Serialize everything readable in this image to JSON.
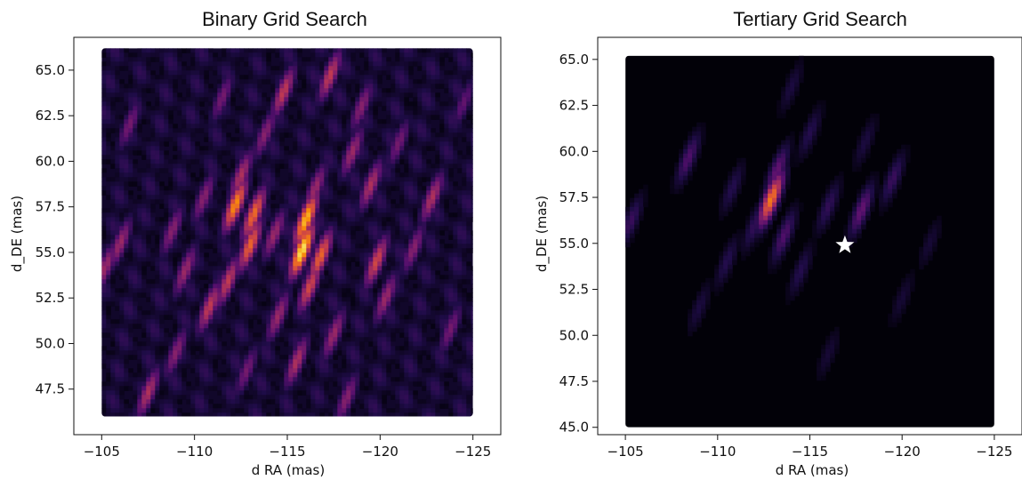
{
  "chart_data": [
    {
      "type": "heatmap",
      "title": "Binary Grid Search",
      "xlabel": "d  RA (mas)",
      "ylabel": "d_DE (mas)",
      "xlim": [
        -103.5,
        -126.5
      ],
      "ylim": [
        45.0,
        66.8
      ],
      "data_extent": {
        "x": [
          -105,
          -125
        ],
        "y": [
          46,
          66.2
        ]
      },
      "xticks": [
        -105,
        -110,
        -115,
        -120,
        -125
      ],
      "xticklabels": [
        "−105",
        "−110",
        "−115",
        "−120",
        "−125"
      ],
      "yticks": [
        47.5,
        50.0,
        52.5,
        55.0,
        57.5,
        60.0,
        62.5,
        65.0
      ],
      "yticklabels": [
        "47.5",
        "50.0",
        "52.5",
        "55.0",
        "57.5",
        "60.0",
        "62.5",
        "65.0"
      ],
      "colormap": "inferno",
      "background_level": 0.18,
      "peaks": [
        {
          "x": -115.8,
          "y": 55.1,
          "v": 1.0
        },
        {
          "x": -116.0,
          "y": 56.8,
          "v": 0.9
        },
        {
          "x": -112.2,
          "y": 57.6,
          "v": 0.8
        },
        {
          "x": -113.2,
          "y": 57.1,
          "v": 0.72
        },
        {
          "x": -113.0,
          "y": 55.4,
          "v": 0.7
        },
        {
          "x": -116.8,
          "y": 54.8,
          "v": 0.7
        },
        {
          "x": -116.2,
          "y": 53.1,
          "v": 0.6
        },
        {
          "x": -119.8,
          "y": 54.5,
          "v": 0.6
        },
        {
          "x": -111.8,
          "y": 53.4,
          "v": 0.55
        },
        {
          "x": -110.8,
          "y": 52.0,
          "v": 0.55
        },
        {
          "x": -114.8,
          "y": 63.8,
          "v": 0.55
        },
        {
          "x": -119.5,
          "y": 58.7,
          "v": 0.5
        },
        {
          "x": -122.8,
          "y": 58.0,
          "v": 0.5
        },
        {
          "x": -117.3,
          "y": 64.7,
          "v": 0.55
        },
        {
          "x": -112.5,
          "y": 59.2,
          "v": 0.5
        },
        {
          "x": -115.5,
          "y": 49.0,
          "v": 0.5
        },
        {
          "x": -109.5,
          "y": 54.0,
          "v": 0.45
        },
        {
          "x": -107.5,
          "y": 47.3,
          "v": 0.5
        },
        {
          "x": -120.3,
          "y": 52.5,
          "v": 0.45
        },
        {
          "x": -114.5,
          "y": 51.5,
          "v": 0.45
        },
        {
          "x": -118.5,
          "y": 60.5,
          "v": 0.45
        },
        {
          "x": -121.8,
          "y": 55.2,
          "v": 0.4
        },
        {
          "x": -106.0,
          "y": 55.5,
          "v": 0.45
        },
        {
          "x": -110.5,
          "y": 58.0,
          "v": 0.4
        },
        {
          "x": -113.8,
          "y": 61.5,
          "v": 0.4
        },
        {
          "x": -108.8,
          "y": 56.2,
          "v": 0.4
        },
        {
          "x": -117.5,
          "y": 50.5,
          "v": 0.45
        },
        {
          "x": -119.0,
          "y": 63.0,
          "v": 0.4
        },
        {
          "x": -123.8,
          "y": 50.8,
          "v": 0.35
        },
        {
          "x": -106.5,
          "y": 62.0,
          "v": 0.35
        },
        {
          "x": -109.0,
          "y": 49.5,
          "v": 0.4
        },
        {
          "x": -111.5,
          "y": 63.5,
          "v": 0.35
        },
        {
          "x": -121.0,
          "y": 61.0,
          "v": 0.35
        },
        {
          "x": -112.8,
          "y": 48.5,
          "v": 0.35
        },
        {
          "x": -118.2,
          "y": 47.0,
          "v": 0.4
        },
        {
          "x": -105.2,
          "y": 54.2,
          "v": 0.45
        },
        {
          "x": -124.5,
          "y": 63.2,
          "v": 0.3
        },
        {
          "x": -116.5,
          "y": 58.5,
          "v": 0.45
        },
        {
          "x": -114.3,
          "y": 56.0,
          "v": 0.45
        }
      ]
    },
    {
      "type": "heatmap",
      "title": "Tertiary Grid Search",
      "xlabel": "d  RA (mas)",
      "ylabel": "d_DE (mas)",
      "xlim": [
        -103.5,
        -126.5
      ],
      "ylim": [
        44.6,
        66.2
      ],
      "data_extent": {
        "x": [
          -105,
          -125
        ],
        "y": [
          45.0,
          65.2
        ]
      },
      "xticks": [
        -105,
        -110,
        -115,
        -120,
        -125
      ],
      "xticklabels": [
        "−105",
        "−110",
        "−115",
        "−120",
        "−125"
      ],
      "yticks": [
        45.0,
        47.5,
        50.0,
        52.5,
        55.0,
        57.5,
        60.0,
        62.5,
        65.0
      ],
      "yticklabels": [
        "45.0",
        "47.5",
        "50.0",
        "52.5",
        "55.0",
        "57.5",
        "60.0",
        "62.5",
        "65.0"
      ],
      "colormap": "inferno",
      "background_level": 0.02,
      "marker": {
        "symbol": "star",
        "x": -116.9,
        "y": 54.9,
        "color": "#ffffff"
      },
      "peaks": [
        {
          "x": -112.9,
          "y": 57.4,
          "v": 0.75
        },
        {
          "x": -113.2,
          "y": 58.9,
          "v": 0.3
        },
        {
          "x": -117.8,
          "y": 56.8,
          "v": 0.3
        },
        {
          "x": -113.6,
          "y": 55.4,
          "v": 0.25
        },
        {
          "x": -108.4,
          "y": 59.6,
          "v": 0.25
        },
        {
          "x": -119.5,
          "y": 58.5,
          "v": 0.2
        },
        {
          "x": -112.0,
          "y": 56.0,
          "v": 0.18
        },
        {
          "x": -116.0,
          "y": 57.0,
          "v": 0.18
        },
        {
          "x": -105.3,
          "y": 56.2,
          "v": 0.2
        },
        {
          "x": -114.5,
          "y": 53.5,
          "v": 0.15
        },
        {
          "x": -110.5,
          "y": 54.0,
          "v": 0.15
        },
        {
          "x": -115.0,
          "y": 61.0,
          "v": 0.15
        },
        {
          "x": -109.0,
          "y": 51.5,
          "v": 0.12
        },
        {
          "x": -114.0,
          "y": 63.5,
          "v": 0.12
        },
        {
          "x": -120.0,
          "y": 52.0,
          "v": 0.1
        },
        {
          "x": -118.0,
          "y": 60.5,
          "v": 0.12
        },
        {
          "x": -110.8,
          "y": 58.0,
          "v": 0.15
        },
        {
          "x": -116.0,
          "y": 49.0,
          "v": 0.1
        },
        {
          "x": -121.5,
          "y": 55.0,
          "v": 0.1
        }
      ]
    }
  ]
}
